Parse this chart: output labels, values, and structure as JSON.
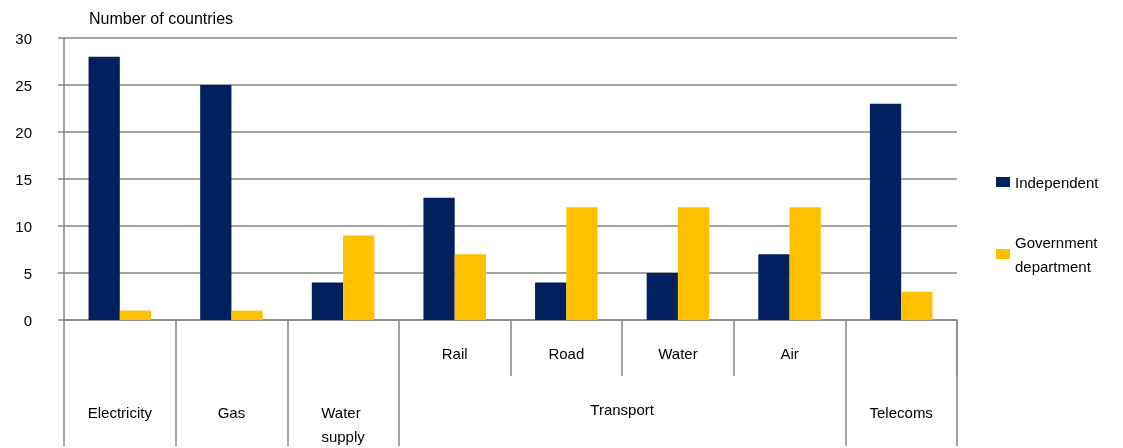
{
  "chart_data": {
    "type": "bar",
    "ylabel": "Number of countries",
    "categories": [
      "Electricity",
      "Gas",
      "Water supply",
      "Rail",
      "Road",
      "Water",
      "Air",
      "Telecoms"
    ],
    "series": [
      {
        "name": "Independent",
        "color": "#002060",
        "values": [
          28,
          25,
          4,
          13,
          4,
          5,
          7,
          23
        ]
      },
      {
        "name": "Government department",
        "color": "#ffc000",
        "values": [
          1,
          1,
          9,
          7,
          12,
          12,
          12,
          3
        ]
      }
    ],
    "ylim": [
      0,
      30
    ],
    "yticks": [
      0,
      5,
      10,
      15,
      20,
      25,
      30
    ],
    "grid": "y",
    "legend": "right",
    "annotations": [
      "Transport"
    ]
  }
}
